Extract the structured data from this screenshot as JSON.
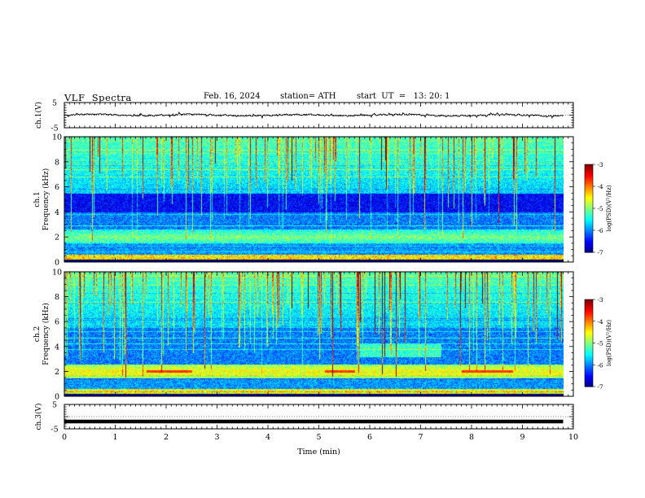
{
  "header": {
    "title": "VLF  Spectra",
    "date": "Feb. 16, 2024",
    "station": "station= ATH",
    "start": "start  UT  =   13: 20: 1"
  },
  "chart_data": [
    {
      "type": "line",
      "panel": "ch1-waveform",
      "ylabel": "ch.1(V)",
      "yticks": [
        "5",
        "-5"
      ],
      "ylim": [
        -5,
        5
      ],
      "xlim": [
        0,
        10
      ],
      "x_end": 9.8,
      "series": [
        {
          "values": "noisy waveform centred near 0 V, excursions within about ±1.5 V"
        }
      ]
    },
    {
      "type": "heatmap",
      "panel": "ch1-spectrogram",
      "ylabel": "Frequency (kHz)",
      "channel_label": "ch.1",
      "xlim": [
        0,
        10
      ],
      "x_end": 9.8,
      "ylim": [
        0,
        10
      ],
      "yticks": [
        "0",
        "2",
        "4",
        "6",
        "8",
        "10"
      ],
      "colorbar": {
        "label": "log(PSD)(V²/Hz)",
        "ticks": [
          "-3",
          "-4",
          "-5",
          "-6",
          "-7"
        ],
        "range": [
          -7,
          -3
        ]
      },
      "features": {
        "band_2khz_level": -5,
        "dark_band_4_5khz_level": -6.5,
        "high_freq_level": -5.5,
        "low_band_0_1khz_level": -4
      }
    },
    {
      "type": "heatmap",
      "panel": "ch2-spectrogram",
      "ylabel": "Frequency (kHz)",
      "channel_label": "ch.2",
      "xlim": [
        0,
        10
      ],
      "x_end": 9.8,
      "ylim": [
        0,
        10
      ],
      "yticks": [
        "0",
        "2",
        "4",
        "6",
        "8",
        "10"
      ],
      "colorbar": {
        "label": "log(PSD)(V²/Hz)",
        "ticks": [
          "-3",
          "-4",
          "-5",
          "-6",
          "-7"
        ],
        "range": [
          -7,
          -3
        ]
      },
      "features": {
        "band_2khz_level": -4.5,
        "red_segments_2khz": [
          [
            1.6,
            2.5
          ],
          [
            5.1,
            5.7
          ],
          [
            7.8,
            8.8
          ]
        ],
        "high_freq_level": -5.5
      }
    },
    {
      "type": "line",
      "panel": "ch3-waveform",
      "ylabel": "ch.3(V)",
      "yticks": [
        "5",
        "-5"
      ],
      "ylim": [
        -5,
        5
      ],
      "xlim": [
        0,
        10
      ],
      "x_end": 9.8,
      "series": [
        {
          "values": "flat thick trace at about -2 V"
        }
      ],
      "level": -2
    }
  ],
  "xaxis": {
    "label": "Time  (min)",
    "ticks": [
      "0",
      "1",
      "2",
      "3",
      "4",
      "5",
      "6",
      "7",
      "8",
      "9",
      "10"
    ]
  }
}
